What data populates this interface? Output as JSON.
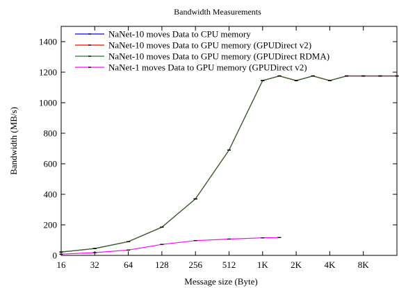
{
  "chart_data": {
    "type": "line",
    "title": "Bandwidth Measurements",
    "xlabel": "Message size (Byte)",
    "ylabel": "Bandwidth (MB/s)",
    "x_scale": "log2",
    "x_ticks": [
      16,
      32,
      64,
      128,
      256,
      512,
      1024,
      2048,
      4096,
      8192
    ],
    "x_tick_labels": [
      "16",
      "32",
      "64",
      "128",
      "256",
      "512",
      "1K",
      "2K",
      "4K",
      "8K"
    ],
    "xlim": [
      16,
      16384
    ],
    "ylim": [
      0,
      1500
    ],
    "y_ticks": [
      0,
      200,
      400,
      600,
      800,
      1000,
      1200,
      1400
    ],
    "y_tick_labels": [
      "0",
      "200",
      "400",
      "600",
      "800",
      "1000",
      "1200",
      "1400"
    ],
    "grid": false,
    "legend_position": "top-left",
    "series": [
      {
        "name": "NaNet-10 moves Data to CPU memory",
        "color": "#0000ff",
        "x": [
          16,
          32,
          64,
          128,
          256,
          512,
          1024,
          1448,
          2048,
          2896,
          4096,
          5792,
          8192,
          11585,
          16384
        ],
        "y": [
          22,
          45,
          90,
          185,
          370,
          690,
          1145,
          1175,
          1145,
          1175,
          1145,
          1175,
          1175,
          1175,
          1175
        ]
      },
      {
        "name": "NaNet-10 moves Data to GPU memory (GPUDirect v2)",
        "color": "#ff0000",
        "x": [
          16,
          32,
          64,
          128,
          256,
          512,
          1024,
          1448,
          2048,
          2896,
          4096,
          5792,
          8192,
          11585,
          16384
        ],
        "y": [
          22,
          45,
          90,
          185,
          370,
          690,
          1145,
          1175,
          1145,
          1175,
          1145,
          1175,
          1175,
          1175,
          1175
        ]
      },
      {
        "name": "NaNet-10 moves Data to GPU memory (GPUDirect RDMA)",
        "color": "#2a6e2a",
        "x": [
          16,
          32,
          64,
          128,
          256,
          512,
          1024,
          1448,
          2048,
          2896,
          4096,
          5792,
          8192,
          11585,
          16384
        ],
        "y": [
          22,
          45,
          90,
          185,
          370,
          690,
          1145,
          1175,
          1145,
          1175,
          1145,
          1175,
          1175,
          1175,
          1175
        ]
      },
      {
        "name": "NaNet-1 moves Data to GPU memory (GPUDirect v2)",
        "color": "#ff00ff",
        "x": [
          16,
          32,
          64,
          128,
          256,
          512,
          1024,
          1448
        ],
        "y": [
          8,
          18,
          35,
          72,
          97,
          107,
          115,
          117
        ]
      }
    ]
  }
}
